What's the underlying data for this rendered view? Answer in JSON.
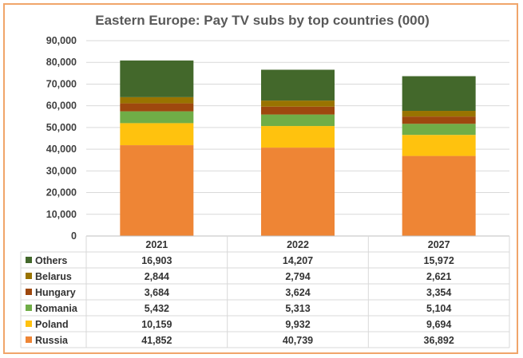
{
  "chart_data": {
    "type": "bar",
    "stacked": true,
    "title": "Eastern Europe: Pay TV subs by top countries (000)",
    "categories": [
      "2021",
      "2022",
      "2027"
    ],
    "ylim": [
      0,
      90000
    ],
    "yticks": [
      0,
      10000,
      20000,
      30000,
      40000,
      50000,
      60000,
      70000,
      80000,
      90000
    ],
    "ytick_labels": [
      "0",
      "10,000",
      "20,000",
      "30,000",
      "40,000",
      "50,000",
      "60,000",
      "70,000",
      "80,000",
      "90,000"
    ],
    "grid": true,
    "legend_placement": "data-table",
    "series": [
      {
        "name": "Russia",
        "color": "#ee8535",
        "values": [
          41852,
          40739,
          36892
        ],
        "labels": [
          "41,852",
          "40,739",
          "36,892"
        ]
      },
      {
        "name": "Poland",
        "color": "#ffc20e",
        "values": [
          10159,
          9932,
          9694
        ],
        "labels": [
          "10,159",
          "9,932",
          "9,694"
        ]
      },
      {
        "name": "Romania",
        "color": "#70ad47",
        "values": [
          5432,
          5313,
          5104
        ],
        "labels": [
          "5,432",
          "5,313",
          "5,104"
        ]
      },
      {
        "name": "Hungary",
        "color": "#9e480e",
        "values": [
          3684,
          3624,
          3354
        ],
        "labels": [
          "3,684",
          "3,624",
          "3,354"
        ]
      },
      {
        "name": "Belarus",
        "color": "#997300",
        "values": [
          2844,
          2794,
          2621
        ],
        "labels": [
          "2,844",
          "2,794",
          "2,621"
        ]
      },
      {
        "name": "Others",
        "color": "#43682b",
        "values": [
          16903,
          14207,
          15972
        ],
        "labels": [
          "16,903",
          "14,207",
          "15,972"
        ]
      }
    ]
  }
}
